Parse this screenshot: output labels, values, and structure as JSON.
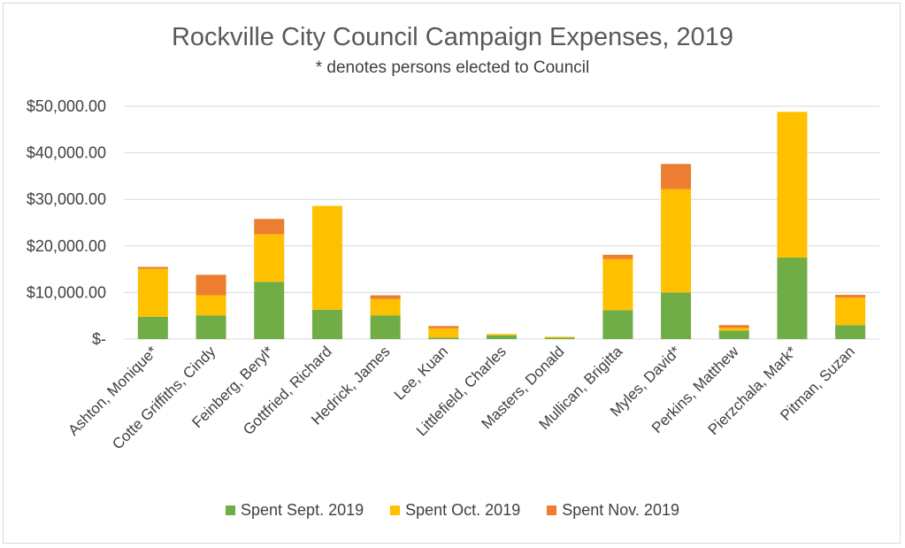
{
  "chart_data": {
    "type": "bar",
    "stacked": true,
    "title": "Rockville City Council Campaign Expenses, 2019",
    "subtitle": "* denotes persons elected to Council",
    "xlabel": "",
    "ylabel": "",
    "ylim": [
      0,
      50000
    ],
    "yticks": [
      0,
      10000,
      20000,
      30000,
      40000,
      50000
    ],
    "ytick_labels": [
      "$-",
      "$10,000.00",
      "$20,000.00",
      "$30,000.00",
      "$40,000.00",
      "$50,000.00"
    ],
    "grid": true,
    "legend_position": "bottom",
    "categories": [
      "Ashton, Monique*",
      "Cotte Griffiths, Cindy",
      "Feinberg, Beryl*",
      "Gottfried, Richard",
      "Hedrick, James",
      "Lee, Kuan",
      "Littlefield, Charles",
      "Masters, Donald",
      "Mullican, Brigitta",
      "Myles, David*",
      "Perkins, Matthew",
      "Pierzchala, Mark*",
      "Pitman, Suzan"
    ],
    "series": [
      {
        "name": "Spent Sept. 2019",
        "color": "#70ad47",
        "values": [
          4800,
          5100,
          12300,
          6300,
          5100,
          300,
          800,
          300,
          6200,
          10000,
          1800,
          17500,
          3000
        ]
      },
      {
        "name": "Spent Oct. 2019",
        "color": "#ffc000",
        "values": [
          10300,
          4300,
          10200,
          22300,
          3500,
          2000,
          300,
          200,
          11000,
          22200,
          600,
          31300,
          5900
        ]
      },
      {
        "name": "Spent Nov. 2019",
        "color": "#ed7d31",
        "values": [
          400,
          4400,
          3300,
          0,
          800,
          500,
          0,
          0,
          900,
          5400,
          600,
          0,
          600
        ]
      }
    ]
  }
}
